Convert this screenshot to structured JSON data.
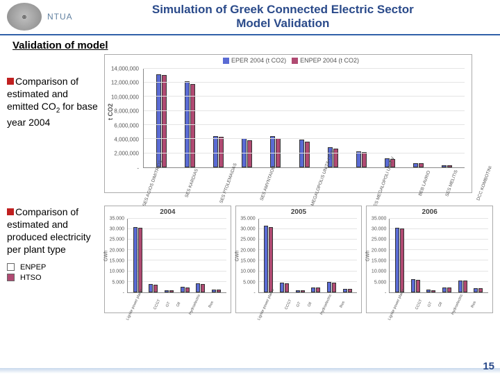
{
  "header": {
    "ntua": "NTUA",
    "title_l1": "Simulation of Greek Connected Electric Sector",
    "title_l2": "Model Validation"
  },
  "subtitle": "Validation of model",
  "bullet1_html": "Comparison of estimated and emitted CO<sub>2</sub> for base year 2004",
  "bullet2": "Comparison of estimated and produced electricity per plant type",
  "chart1": {
    "ylabel": "t CO2",
    "legend": [
      {
        "label": "EPER 2004 (t CO2)",
        "color": "#5a6bd4"
      },
      {
        "label": "ENPEP 2004 (t CO2)",
        "color": "#b04a72"
      }
    ],
    "ymax": 14000000,
    "ytick_step": 2000000,
    "yticklabels": [
      "-",
      "2,000,000",
      "4,000,000",
      "6,000,000",
      "8,000,000",
      "10,000,000",
      "12,000,000",
      "14,000,000"
    ],
    "categories": [
      "SES AGIOS DIMITRIOS",
      "SES KARDIAS",
      "SES PTOLEMAIDAS",
      "SES AMYNTAIOU",
      "DCC MEGALOPOLIS UNITS I,II,III",
      "SES MEGALOPOLI UNIT V",
      "BEB LAVRIO",
      "SES MELITIS",
      "DCC KOMBOTINI",
      "SEB ARGOS FLORINAS",
      "SES LIPTOL"
    ],
    "series": [
      [
        13200000,
        12200000,
        4400000,
        4100000,
        4400000,
        3900000,
        2800000,
        2200000,
        1300000,
        600000,
        300000
      ],
      [
        13100000,
        11800000,
        4300000,
        3800000,
        4100000,
        3600000,
        2600000,
        2100000,
        1200000,
        550000,
        280000
      ]
    ],
    "colors": [
      "#5a6bd4",
      "#b04a72"
    ]
  },
  "small_charts": {
    "years": [
      "2004",
      "2005",
      "2006"
    ],
    "ylabel": "GWh",
    "ymax": 35000,
    "ytick_step": 5000,
    "yticklabels": [
      "-",
      "5.000",
      "10.000",
      "15.000",
      "20.000",
      "25.000",
      "30.000",
      "35.000"
    ],
    "categories": [
      "Lignite power plants",
      "CCGT",
      "GT",
      "Oil",
      "Hydroelectric",
      "Res"
    ],
    "colors": [
      "#5a6bd4",
      "#b04a72"
    ],
    "data": {
      "2004": [
        [
          31000,
          3800,
          900,
          2500,
          4200,
          1300
        ],
        [
          30500,
          3600,
          850,
          2400,
          4000,
          1250
        ]
      ],
      "2005": [
        [
          31500,
          4500,
          1000,
          2300,
          4900,
          1600
        ],
        [
          31000,
          4300,
          950,
          2200,
          4700,
          1550
        ]
      ],
      "2006": [
        [
          30800,
          6200,
          1100,
          2200,
          5600,
          1900
        ],
        [
          30300,
          6000,
          1050,
          2100,
          5400,
          1850
        ]
      ]
    }
  },
  "small_legend": [
    {
      "label": "ENPEP",
      "color": "#ffffff"
    },
    {
      "label": "HTSO",
      "color": "#b04a72"
    }
  ],
  "pagenum": "15"
}
